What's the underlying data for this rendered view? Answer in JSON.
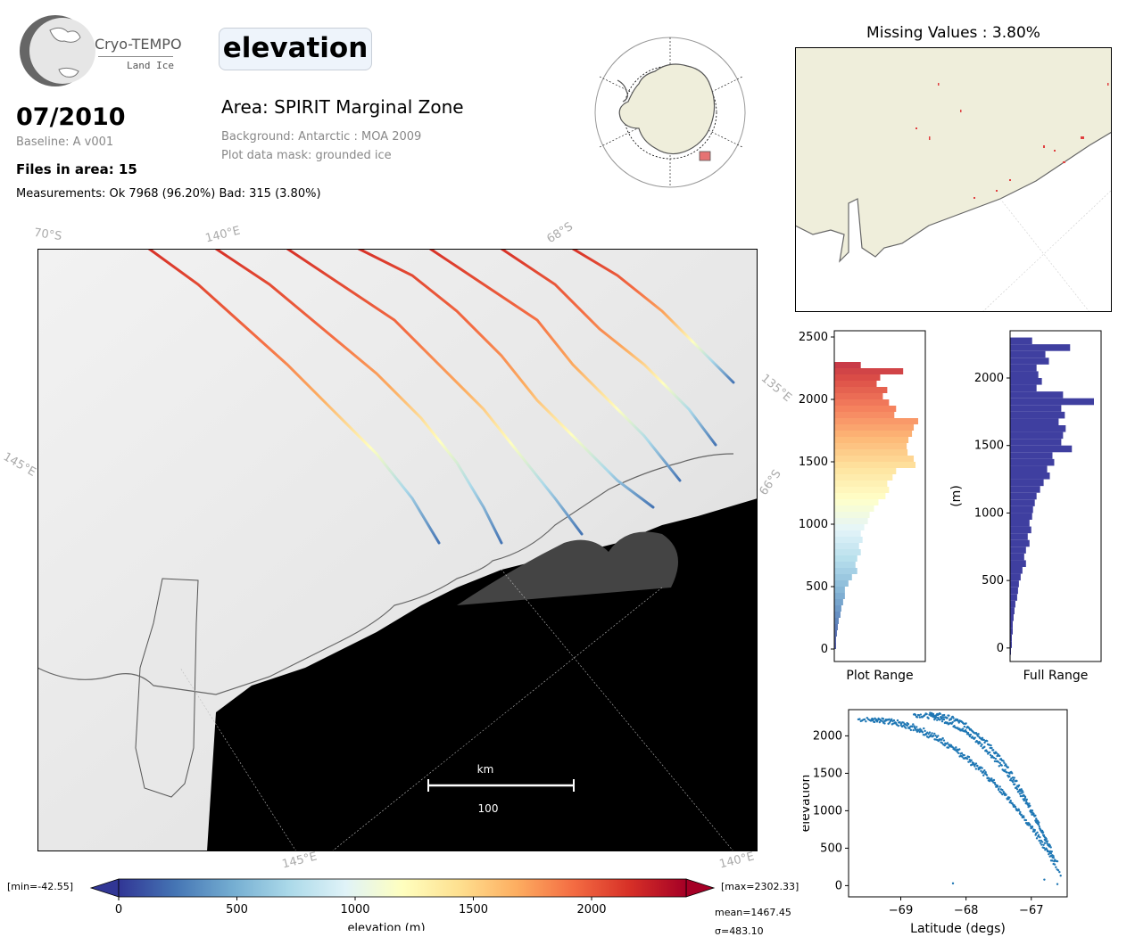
{
  "logo": {
    "name": "Cryo-TEMPO",
    "sub": "Land Ice"
  },
  "header": {
    "parameter": "elevation",
    "date": "07/2010",
    "baseline": "Baseline: A v001",
    "files": "Files in area: 15",
    "measurements": "Measurements: Ok 7968 (96.20%) Bad: 315 (3.80%)",
    "area": "Area: SPIRIT Marginal Zone",
    "background": "Background: Antarctic : MOA 2009",
    "mask": "Plot data mask: grounded ice"
  },
  "main_map": {
    "graticule_labels": [
      "70°S",
      "140°E",
      "68°S",
      "135°E",
      "145°E",
      "66°S",
      "145°E",
      "140°E"
    ],
    "scalebar_unit": "km",
    "scalebar_value": "100"
  },
  "missing_map": {
    "title": "Missing Values : 3.80%"
  },
  "colorbar": {
    "min_label": "[min=-42.55]",
    "max_label": "[max=2302.33]",
    "ticks": [
      "0",
      "500",
      "1000",
      "1500",
      "2000"
    ],
    "label": "elevation (m)",
    "mean": "mean=1467.45",
    "sigma": "σ=483.10",
    "colors": [
      "#313695",
      "#4575b4",
      "#74add1",
      "#abd9e9",
      "#e0f3f8",
      "#ffffbf",
      "#fee090",
      "#fdae61",
      "#f46d43",
      "#d73027",
      "#a50026"
    ]
  },
  "chart_data": [
    {
      "type": "bar",
      "orientation": "horizontal",
      "xlabel": "Plot Range",
      "ylabel": "",
      "ylim": [
        -100,
        2550
      ],
      "yticks": [
        "0",
        "500",
        "1000",
        "1500",
        "2000",
        "2500"
      ],
      "bins": [
        {
          "y": 2275,
          "v": 30
        },
        {
          "y": 2225,
          "v": 78
        },
        {
          "y": 2175,
          "v": 52
        },
        {
          "y": 2125,
          "v": 48
        },
        {
          "y": 2075,
          "v": 60
        },
        {
          "y": 2025,
          "v": 55
        },
        {
          "y": 1975,
          "v": 62
        },
        {
          "y": 1925,
          "v": 70
        },
        {
          "y": 1875,
          "v": 68
        },
        {
          "y": 1825,
          "v": 95
        },
        {
          "y": 1775,
          "v": 90
        },
        {
          "y": 1725,
          "v": 88
        },
        {
          "y": 1675,
          "v": 84
        },
        {
          "y": 1625,
          "v": 82
        },
        {
          "y": 1575,
          "v": 83
        },
        {
          "y": 1525,
          "v": 90
        },
        {
          "y": 1475,
          "v": 92
        },
        {
          "y": 1425,
          "v": 70
        },
        {
          "y": 1375,
          "v": 66
        },
        {
          "y": 1325,
          "v": 60
        },
        {
          "y": 1275,
          "v": 62
        },
        {
          "y": 1225,
          "v": 58
        },
        {
          "y": 1175,
          "v": 50
        },
        {
          "y": 1125,
          "v": 45
        },
        {
          "y": 1075,
          "v": 40
        },
        {
          "y": 1025,
          "v": 38
        },
        {
          "y": 975,
          "v": 34
        },
        {
          "y": 925,
          "v": 30
        },
        {
          "y": 875,
          "v": 32
        },
        {
          "y": 825,
          "v": 28
        },
        {
          "y": 775,
          "v": 30
        },
        {
          "y": 725,
          "v": 26
        },
        {
          "y": 675,
          "v": 24
        },
        {
          "y": 625,
          "v": 26
        },
        {
          "y": 575,
          "v": 20
        },
        {
          "y": 525,
          "v": 16
        },
        {
          "y": 475,
          "v": 12
        },
        {
          "y": 425,
          "v": 12
        },
        {
          "y": 375,
          "v": 10
        },
        {
          "y": 325,
          "v": 8
        },
        {
          "y": 275,
          "v": 7
        },
        {
          "y": 225,
          "v": 5
        },
        {
          "y": 175,
          "v": 4
        },
        {
          "y": 125,
          "v": 3
        },
        {
          "y": 75,
          "v": 2
        },
        {
          "y": 25,
          "v": 2
        }
      ]
    },
    {
      "type": "bar",
      "orientation": "horizontal",
      "xlabel": "Full Range",
      "ylabel": "(m)",
      "ylim": [
        -100,
        2350
      ],
      "yticks": [
        "0",
        "500",
        "1000",
        "1500",
        "2000"
      ],
      "color": "#3f3fa0",
      "bins": [
        {
          "y": 2275,
          "v": 25
        },
        {
          "y": 2225,
          "v": 68
        },
        {
          "y": 2175,
          "v": 40
        },
        {
          "y": 2125,
          "v": 44
        },
        {
          "y": 2075,
          "v": 30
        },
        {
          "y": 2025,
          "v": 32
        },
        {
          "y": 1975,
          "v": 36
        },
        {
          "y": 1925,
          "v": 30
        },
        {
          "y": 1875,
          "v": 60
        },
        {
          "y": 1825,
          "v": 95
        },
        {
          "y": 1775,
          "v": 58
        },
        {
          "y": 1725,
          "v": 62
        },
        {
          "y": 1675,
          "v": 55
        },
        {
          "y": 1625,
          "v": 63
        },
        {
          "y": 1575,
          "v": 60
        },
        {
          "y": 1525,
          "v": 58
        },
        {
          "y": 1475,
          "v": 70
        },
        {
          "y": 1425,
          "v": 48
        },
        {
          "y": 1375,
          "v": 50
        },
        {
          "y": 1325,
          "v": 42
        },
        {
          "y": 1275,
          "v": 45
        },
        {
          "y": 1225,
          "v": 38
        },
        {
          "y": 1175,
          "v": 34
        },
        {
          "y": 1125,
          "v": 30
        },
        {
          "y": 1075,
          "v": 28
        },
        {
          "y": 1025,
          "v": 26
        },
        {
          "y": 975,
          "v": 25
        },
        {
          "y": 925,
          "v": 22
        },
        {
          "y": 875,
          "v": 24
        },
        {
          "y": 825,
          "v": 20
        },
        {
          "y": 775,
          "v": 22
        },
        {
          "y": 725,
          "v": 18
        },
        {
          "y": 675,
          "v": 16
        },
        {
          "y": 625,
          "v": 18
        },
        {
          "y": 575,
          "v": 14
        },
        {
          "y": 525,
          "v": 12
        },
        {
          "y": 475,
          "v": 10
        },
        {
          "y": 425,
          "v": 9
        },
        {
          "y": 375,
          "v": 8
        },
        {
          "y": 325,
          "v": 6
        },
        {
          "y": 275,
          "v": 5
        },
        {
          "y": 225,
          "v": 4
        },
        {
          "y": 175,
          "v": 3
        },
        {
          "y": 125,
          "v": 3
        },
        {
          "y": 75,
          "v": 2
        },
        {
          "y": 25,
          "v": 2
        },
        {
          "y": -25,
          "v": 1
        }
      ]
    },
    {
      "type": "scatter",
      "xlabel": "Latitude (degs)",
      "ylabel": "elevation",
      "xlim": [
        -69.8,
        -66.45
      ],
      "ylim": [
        -150,
        2350
      ],
      "xticks": [
        "−69",
        "−68",
        "−67"
      ],
      "yticks": [
        "0",
        "500",
        "1000",
        "1500",
        "2000"
      ],
      "color": "#1f77b4",
      "tracks": [
        {
          "lat0": -69.65,
          "elev0": 2220,
          "lat1": -66.6,
          "elev1": 300
        },
        {
          "lat0": -69.45,
          "elev0": 2210,
          "lat1": -66.55,
          "elev1": 150
        },
        {
          "lat0": -68.8,
          "elev0": 2280,
          "lat1": -66.7,
          "elev1": 500
        },
        {
          "lat0": -68.55,
          "elev0": 2280,
          "lat1": -66.65,
          "elev1": 350
        }
      ],
      "outliers": [
        {
          "x": -68.2,
          "y": 30
        },
        {
          "x": -66.8,
          "y": 80
        },
        {
          "x": -66.6,
          "y": 20
        }
      ]
    }
  ]
}
